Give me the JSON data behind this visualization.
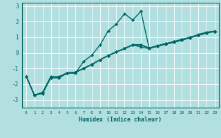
{
  "xlabel": "Humidex (Indice chaleur)",
  "ylabel": "",
  "xlim": [
    -0.5,
    23.5
  ],
  "ylim": [
    -3.5,
    3.2
  ],
  "yticks": [
    -3,
    -2,
    -1,
    0,
    1,
    2,
    3
  ],
  "xticks": [
    0,
    1,
    2,
    3,
    4,
    5,
    6,
    7,
    8,
    9,
    10,
    11,
    12,
    13,
    14,
    15,
    16,
    17,
    18,
    19,
    20,
    21,
    22,
    23
  ],
  "xtick_labels": [
    "0",
    "1",
    "2",
    "3",
    "4",
    "5",
    "6",
    "7",
    "8",
    "9",
    "10",
    "11",
    "12",
    "13",
    "14",
    "15",
    "16",
    "17",
    "18",
    "19",
    "20",
    "21",
    "22",
    "23"
  ],
  "bg_color": "#b2dfdf",
  "grid_color": "#ffffff",
  "line_color": "#006666",
  "line_width": 1.0,
  "marker": "D",
  "marker_size": 2.0,
  "series_x": [
    0,
    1,
    2,
    3,
    4,
    5,
    6,
    7,
    8,
    9,
    10,
    11,
    12,
    13,
    14,
    15,
    16,
    17,
    18,
    19,
    20,
    21,
    22,
    23
  ],
  "series": [
    [
      -1.5,
      -2.7,
      -2.6,
      -1.6,
      -1.6,
      -1.3,
      -1.3,
      -0.55,
      -0.15,
      0.5,
      1.4,
      1.85,
      2.5,
      2.1,
      2.65,
      0.3,
      0.42,
      0.57,
      0.72,
      0.87,
      0.97,
      1.17,
      1.32,
      1.38
    ],
    [
      -1.5,
      -2.7,
      -2.55,
      -1.55,
      -1.55,
      -1.28,
      -1.25,
      -1.0,
      -0.75,
      -0.45,
      -0.18,
      0.05,
      0.27,
      0.5,
      0.5,
      0.3,
      0.44,
      0.58,
      0.7,
      0.84,
      0.98,
      1.13,
      1.28,
      1.36
    ],
    [
      -1.5,
      -2.7,
      -2.55,
      -1.55,
      -1.55,
      -1.28,
      -1.25,
      -1.0,
      -0.75,
      -0.45,
      -0.18,
      0.05,
      0.27,
      0.5,
      0.38,
      0.27,
      0.42,
      0.55,
      0.67,
      0.81,
      0.96,
      1.11,
      1.26,
      1.36
    ],
    [
      -1.5,
      -2.7,
      -2.52,
      -1.52,
      -1.52,
      -1.28,
      -1.23,
      -0.98,
      -0.73,
      -0.44,
      -0.17,
      0.07,
      0.29,
      0.52,
      0.52,
      0.31,
      0.46,
      0.59,
      0.71,
      0.85,
      1.0,
      1.15,
      1.3,
      1.37
    ]
  ]
}
